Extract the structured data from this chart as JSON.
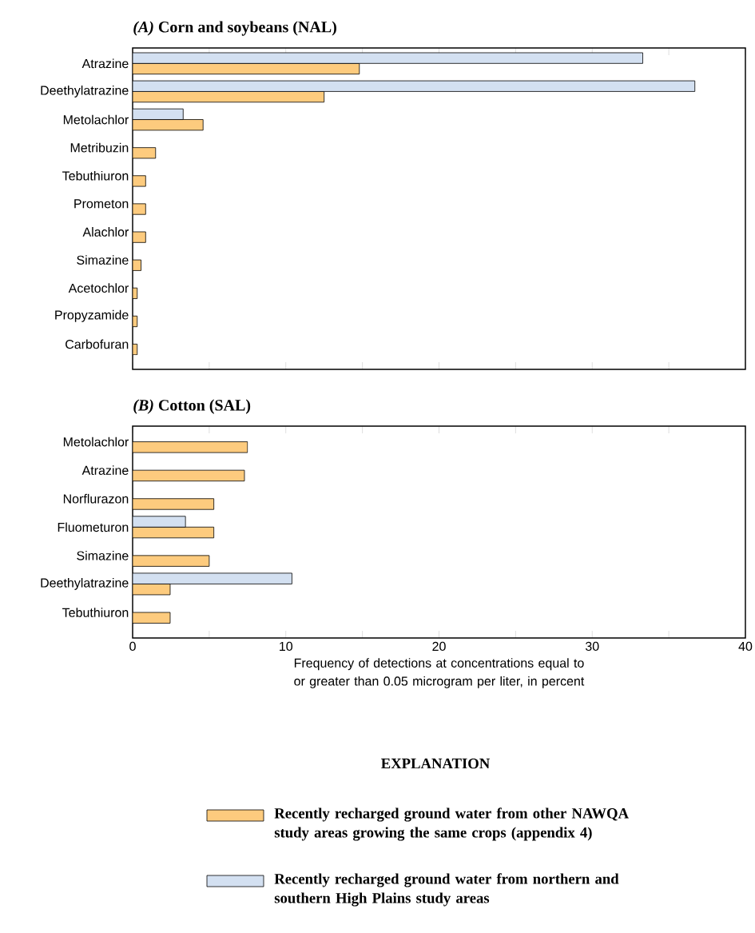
{
  "chart_data": [
    {
      "type": "bar",
      "orientation": "horizontal",
      "title": "*(A)* Corn and soybeans (NAL)",
      "categories": [
        "Atrazine",
        "Deethylatrazine",
        "Metolachlor",
        "Metribuzin",
        "Tebuthiuron",
        "Prometon",
        "Alachlor",
        "Simazine",
        "Acetochlor",
        "Propyzamide",
        "Carbofuran"
      ],
      "series": [
        {
          "color": "#fdcb7e",
          "values": [
            14.8,
            12.5,
            4.6,
            1.5,
            0.85,
            0.85,
            0.85,
            0.55,
            0.3,
            0.3,
            0.3
          ]
        },
        {
          "color": "#d3e0f1",
          "values": [
            33.3,
            36.7,
            3.3,
            null,
            null,
            null,
            null,
            null,
            null,
            null,
            null
          ]
        }
      ],
      "xlim": [
        0,
        40
      ],
      "xticks": [
        {
          "value": 0,
          "label": null
        },
        {
          "value": 5,
          "label": null
        },
        {
          "value": 10,
          "label": null
        },
        {
          "value": 15,
          "label": null
        },
        {
          "value": 20,
          "label": null
        },
        {
          "value": 25,
          "label": null
        },
        {
          "value": 30,
          "label": null
        },
        {
          "value": 35,
          "label": null
        },
        {
          "value": 40,
          "label": null
        }
      ],
      "tick_labels": "y"
    },
    {
      "type": "bar",
      "orientation": "horizontal",
      "title": "*(B)* Cotton (SAL)",
      "xlabel": "Frequency of detections at concentrations equal to or greater than 0.05 microgram per liter, in percent",
      "legend_title": "EXPLANATION",
      "legend": "bottom",
      "categories": [
        "Metolachlor",
        "Atrazine",
        "Norflurazon",
        "Fluometuron",
        "Simazine",
        "Deethylatrazine",
        "Tebuthiuron"
      ],
      "series": [
        {
          "name": "Recently recharged ground water from other NAWQA study areas growing the same crops (appendix 4)",
          "color": "#fdcb7e",
          "values": [
            7.5,
            7.3,
            5.3,
            5.3,
            5.0,
            2.45,
            2.45
          ]
        },
        {
          "name": "Recently recharged ground water from northern and southern High Plains study areas",
          "color": "#d3e0f1",
          "values": [
            null,
            null,
            null,
            3.45,
            null,
            10.4,
            null
          ]
        }
      ],
      "xlim": [
        0,
        40
      ],
      "xticks": [
        0,
        {
          "value": 5,
          "label": null
        },
        10,
        {
          "value": 15,
          "label": null
        },
        20,
        {
          "value": 25,
          "label": null
        },
        30,
        {
          "value": 35,
          "label": null
        },
        40
      ]
    }
  ]
}
